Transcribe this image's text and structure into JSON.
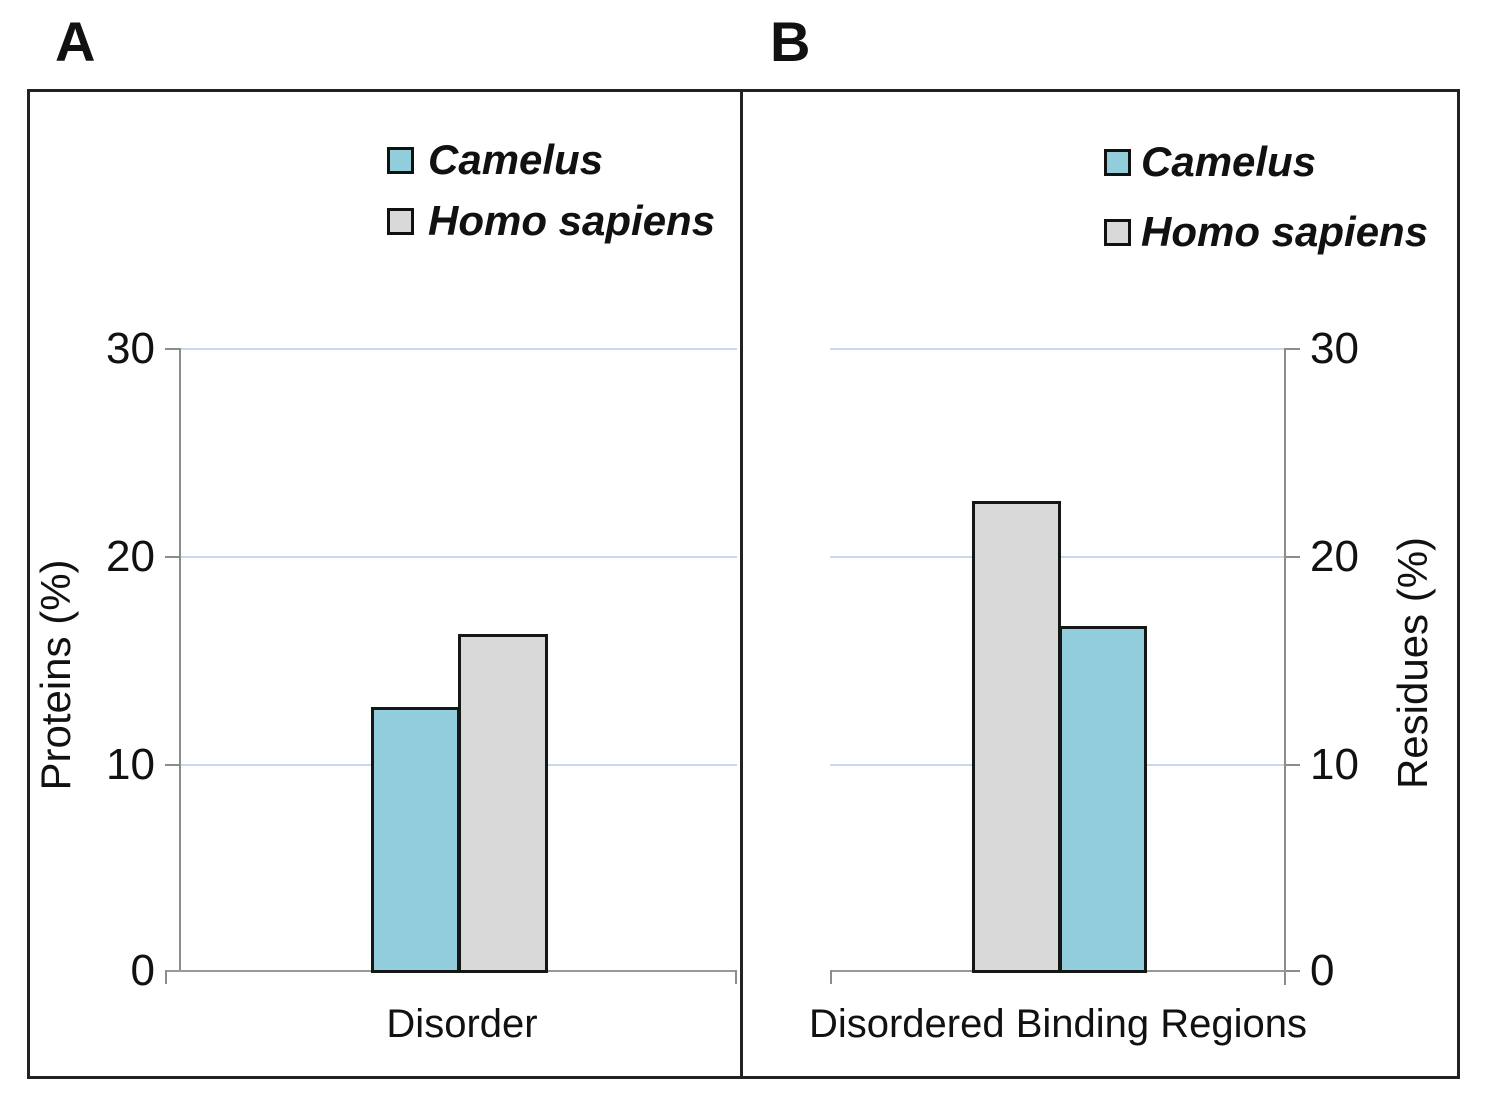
{
  "figure": {
    "panel_a": {
      "label": "A",
      "xlabel": "Disorder",
      "ylabel": "Proteins (%)",
      "yticks_top_to_bottom": [
        "30",
        "20",
        "10",
        "0"
      ]
    },
    "panel_b": {
      "label": "B",
      "xlabel": "Disordered Binding Regions",
      "ylabel": "Residues (%)",
      "yticks_top_to_bottom": [
        "30",
        "20",
        "10",
        "0"
      ]
    },
    "legend": {
      "camelus_label": "Camelus",
      "homo_sapiens_label": "Homo sapiens"
    }
  },
  "colors": {
    "camelus_fill": "#92CDDC",
    "homo_sapiens_fill": "#D9D9D9",
    "bar_border": "#161616",
    "gridline": "#C9D8F0",
    "axis_line": "#8C8C8C",
    "frame": "#222222"
  },
  "chart_data": [
    {
      "type": "bar",
      "panel": "A",
      "categories": [
        "Disorder"
      ],
      "series": [
        {
          "name": "Camelus",
          "values": [
            12.7
          ],
          "color": "#92CDDC"
        },
        {
          "name": "Homo sapiens",
          "values": [
            16.2
          ],
          "color": "#D9D9D9"
        }
      ],
      "xlabel": "Disorder",
      "ylabel": "Proteins (%)",
      "ylim": [
        0,
        30
      ],
      "yticks": [
        0,
        10,
        20,
        30
      ],
      "axis_side": "left",
      "grid": true,
      "legend_position": "upper-center-inside",
      "legend_entries": [
        "Camelus",
        "Homo sapiens"
      ]
    },
    {
      "type": "bar",
      "panel": "B",
      "categories": [
        "Disordered Binding Regions"
      ],
      "series": [
        {
          "name": "Homo sapiens",
          "values": [
            22.6
          ],
          "color": "#D9D9D9"
        },
        {
          "name": "Camelus",
          "values": [
            16.6
          ],
          "color": "#92CDDC"
        }
      ],
      "xlabel": "Disordered Binding Regions",
      "ylabel": "Residues (%)",
      "ylim": [
        0,
        30
      ],
      "yticks": [
        0,
        10,
        20,
        30
      ],
      "axis_side": "right",
      "grid": true,
      "legend_position": "upper-center-inside",
      "legend_entries": [
        "Camelus",
        "Homo sapiens"
      ]
    }
  ]
}
